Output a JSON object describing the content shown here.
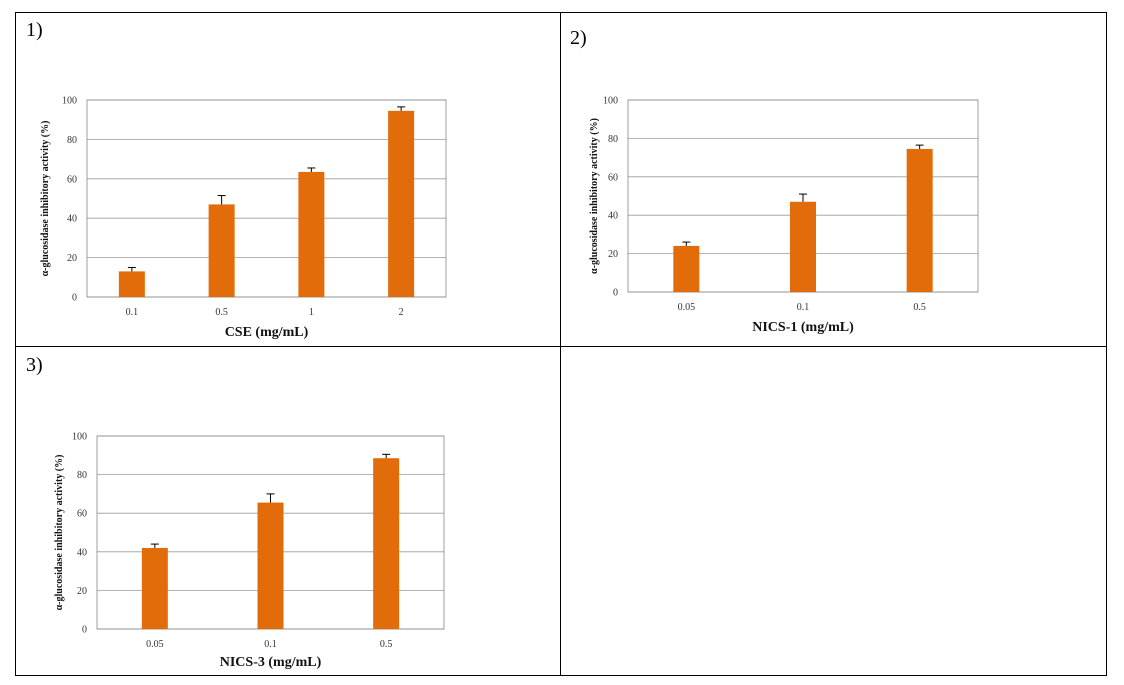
{
  "chart_data": [
    {
      "type": "bar",
      "label": "1)",
      "xlabel": "CSE (mg/mL)",
      "ylabel": "α-glucosidase inhibitory activity (%)",
      "categories": [
        "0.1",
        "0.5",
        "1",
        "2"
      ],
      "values": [
        13,
        47,
        63.5,
        94.5
      ],
      "errors": [
        2,
        4.5,
        2,
        2
      ],
      "color": "#e36c0a",
      "ylim": [
        0,
        100
      ],
      "yticks": [
        0,
        20,
        40,
        60,
        80,
        100
      ],
      "grid": true
    },
    {
      "type": "bar",
      "label": "2)",
      "xlabel": "NICS-1 (mg/mL)",
      "ylabel": "α-glucosidase inhibitory activity (%)",
      "categories": [
        "0.05",
        "0.1",
        "0.5"
      ],
      "values": [
        24,
        47,
        74.5
      ],
      "errors": [
        2,
        4,
        2
      ],
      "color": "#e36c0a",
      "ylim": [
        0,
        100
      ],
      "yticks": [
        0,
        20,
        40,
        60,
        80,
        100
      ],
      "grid": true
    },
    {
      "type": "bar",
      "label": "3)",
      "xlabel": "NICS-3 (mg/mL)",
      "ylabel": "α-glucosidase inhibitory activity (%)",
      "categories": [
        "0.05",
        "0.1",
        "0.5"
      ],
      "values": [
        42,
        65.5,
        88.5
      ],
      "errors": [
        2,
        4.5,
        2
      ],
      "color": "#e36c0a",
      "ylim": [
        0,
        100
      ],
      "yticks": [
        0,
        20,
        40,
        60,
        80,
        100
      ],
      "grid": true
    }
  ]
}
